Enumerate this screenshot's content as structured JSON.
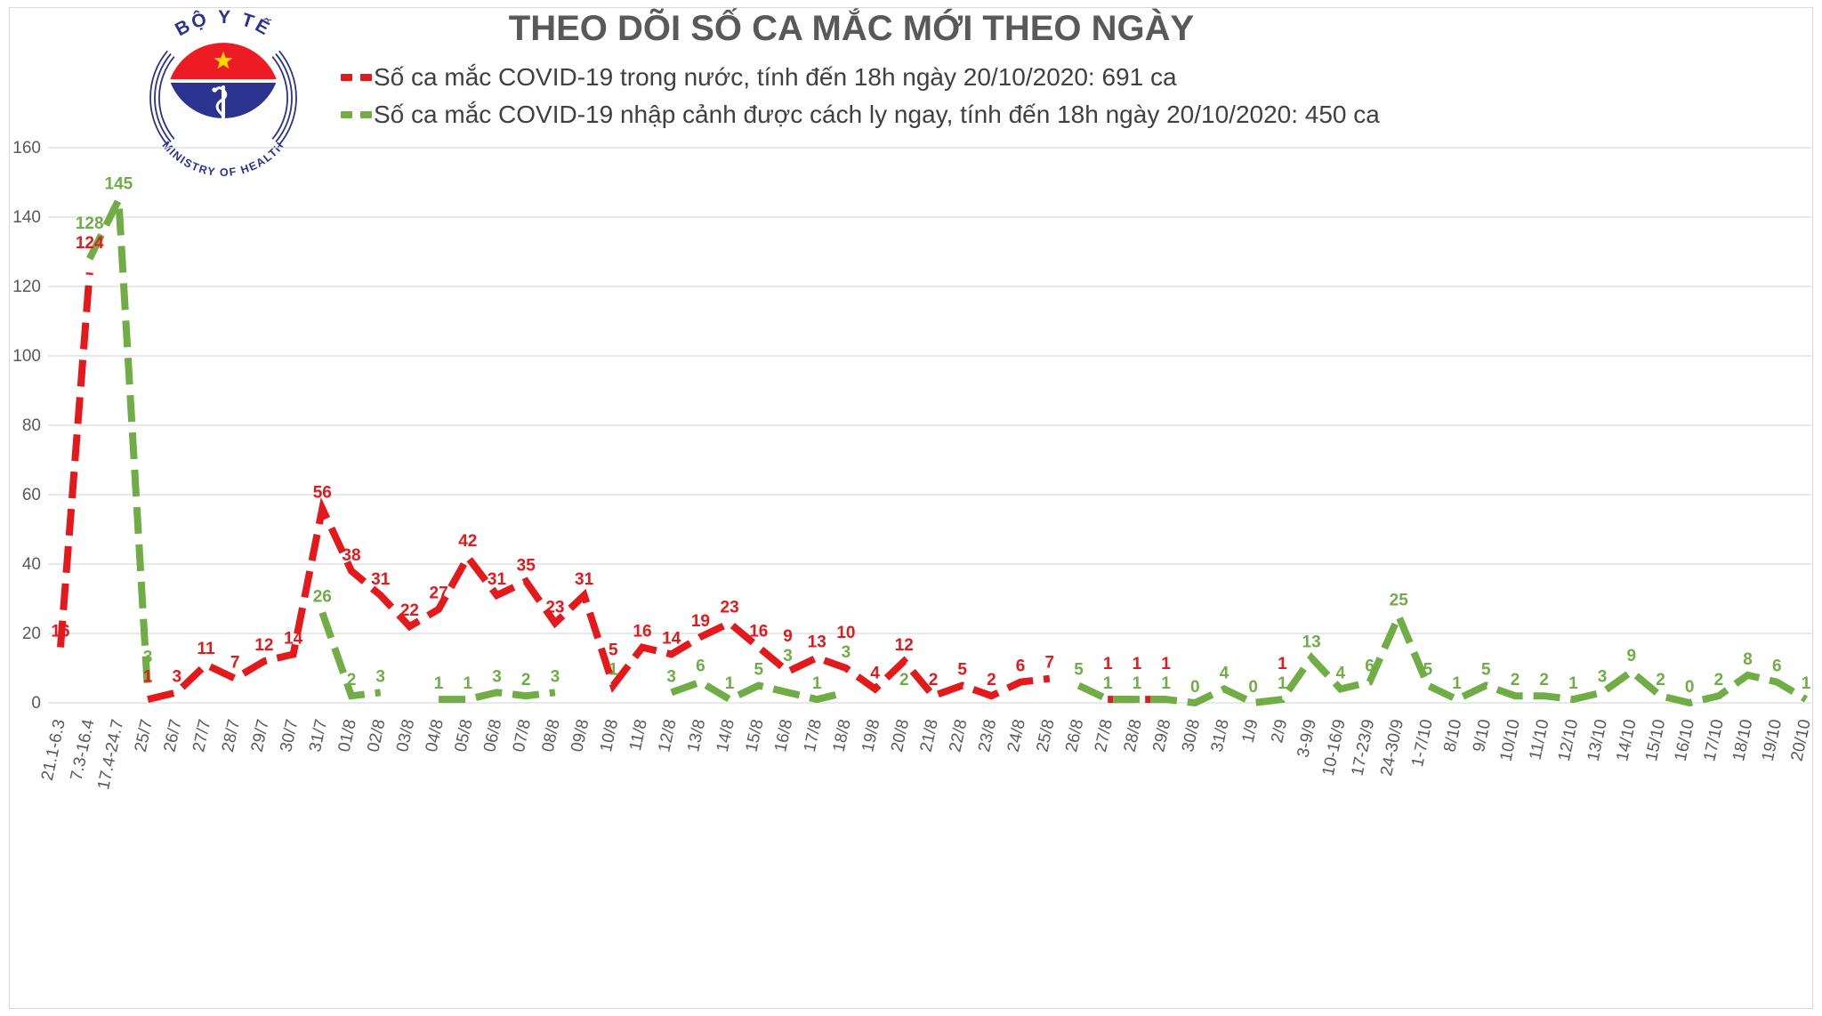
{
  "header": {
    "title": "THEO DÕI SỐ CA MẮC MỚI THEO NGÀY",
    "logo": {
      "top_text": "BỘ Y TẾ",
      "bottom_text": "MINISTRY OF HEALTH",
      "navy": "#2b3390",
      "red": "#ed1c24",
      "star_yellow": "#ffd400"
    }
  },
  "legend": [
    {
      "label": "Số ca mắc COVID-19 trong nước, tính đến 18h ngày 20/10/2020: 691 ca",
      "color": "#e3191c"
    },
    {
      "label": "Số ca mắc COVID-19 nhập cảnh được cách ly ngay, tính đến 18h ngày 20/10/2020: 450 ca",
      "color": "#70ad47"
    }
  ],
  "chart_data": {
    "type": "line",
    "title": "THEO DÕI SỐ CA MẮC MỚI THEO NGÀY",
    "xlabel": "",
    "ylabel": "",
    "ylim": [
      0,
      160
    ],
    "yticks": [
      0,
      20,
      40,
      60,
      80,
      100,
      120,
      140,
      160
    ],
    "grid": true,
    "legend_position": "top",
    "line_style": "dashed",
    "categories": [
      "21.1-6.3",
      "7.3-16.4",
      "17.4-24.7",
      "25/7",
      "26/7",
      "27/7",
      "28/7",
      "29/7",
      "30/7",
      "31/7",
      "01/8",
      "02/8",
      "03/8",
      "04/8",
      "05/8",
      "06/8",
      "07/8",
      "08/8",
      "09/8",
      "10/8",
      "11/8",
      "12/8",
      "13/8",
      "14/8",
      "15/8",
      "16/8",
      "17/8",
      "18/8",
      "19/8",
      "20/8",
      "21/8",
      "22/8",
      "23/8",
      "24/8",
      "25/8",
      "26/8",
      "27/8",
      "28/8",
      "29/8",
      "30/8",
      "31/8",
      "1/9",
      "2/9",
      "3-9/9",
      "10-16/9",
      "17-23/9",
      "24-30/9",
      "1-7/10",
      "8/10",
      "9/10",
      "10/10",
      "11/10",
      "12/10",
      "13/10",
      "14/10",
      "15/10",
      "16/10",
      "17/10",
      "18/10",
      "19/10",
      "20/10"
    ],
    "series": [
      {
        "name": "Số ca mắc COVID-19 trong nước, tính đến 18h ngày 20/10/2020: 691 ca",
        "color": "#e3191c",
        "values": [
          16,
          124,
          null,
          1,
          3,
          11,
          7,
          12,
          14,
          56,
          38,
          31,
          22,
          27,
          42,
          31,
          35,
          23,
          31,
          5,
          16,
          14,
          19,
          23,
          16,
          9,
          13,
          10,
          4,
          12,
          2,
          5,
          2,
          6,
          7,
          null,
          1,
          1,
          1,
          null,
          null,
          null,
          1,
          null,
          null,
          null,
          null,
          null,
          null,
          null,
          null,
          null,
          null,
          null,
          null,
          null,
          null,
          null,
          null,
          null,
          null
        ]
      },
      {
        "name": "Số ca mắc COVID-19 nhập cảnh được cách ly ngay, tính đến 18h ngày 20/10/2020: 450 ca",
        "color": "#70ad47",
        "values": [
          null,
          128,
          145,
          3,
          null,
          null,
          null,
          null,
          null,
          26,
          2,
          3,
          null,
          1,
          1,
          3,
          2,
          3,
          null,
          1,
          null,
          3,
          6,
          1,
          5,
          3,
          1,
          3,
          null,
          2,
          null,
          null,
          null,
          null,
          null,
          5,
          1,
          1,
          1,
          0,
          4,
          0,
          1,
          13,
          4,
          6,
          25,
          5,
          1,
          5,
          2,
          2,
          1,
          3,
          9,
          2,
          0,
          2,
          8,
          6,
          1
        ]
      }
    ]
  },
  "axis_style": {
    "tick_color": "#595959",
    "grid_color": "#d9d9d9"
  }
}
